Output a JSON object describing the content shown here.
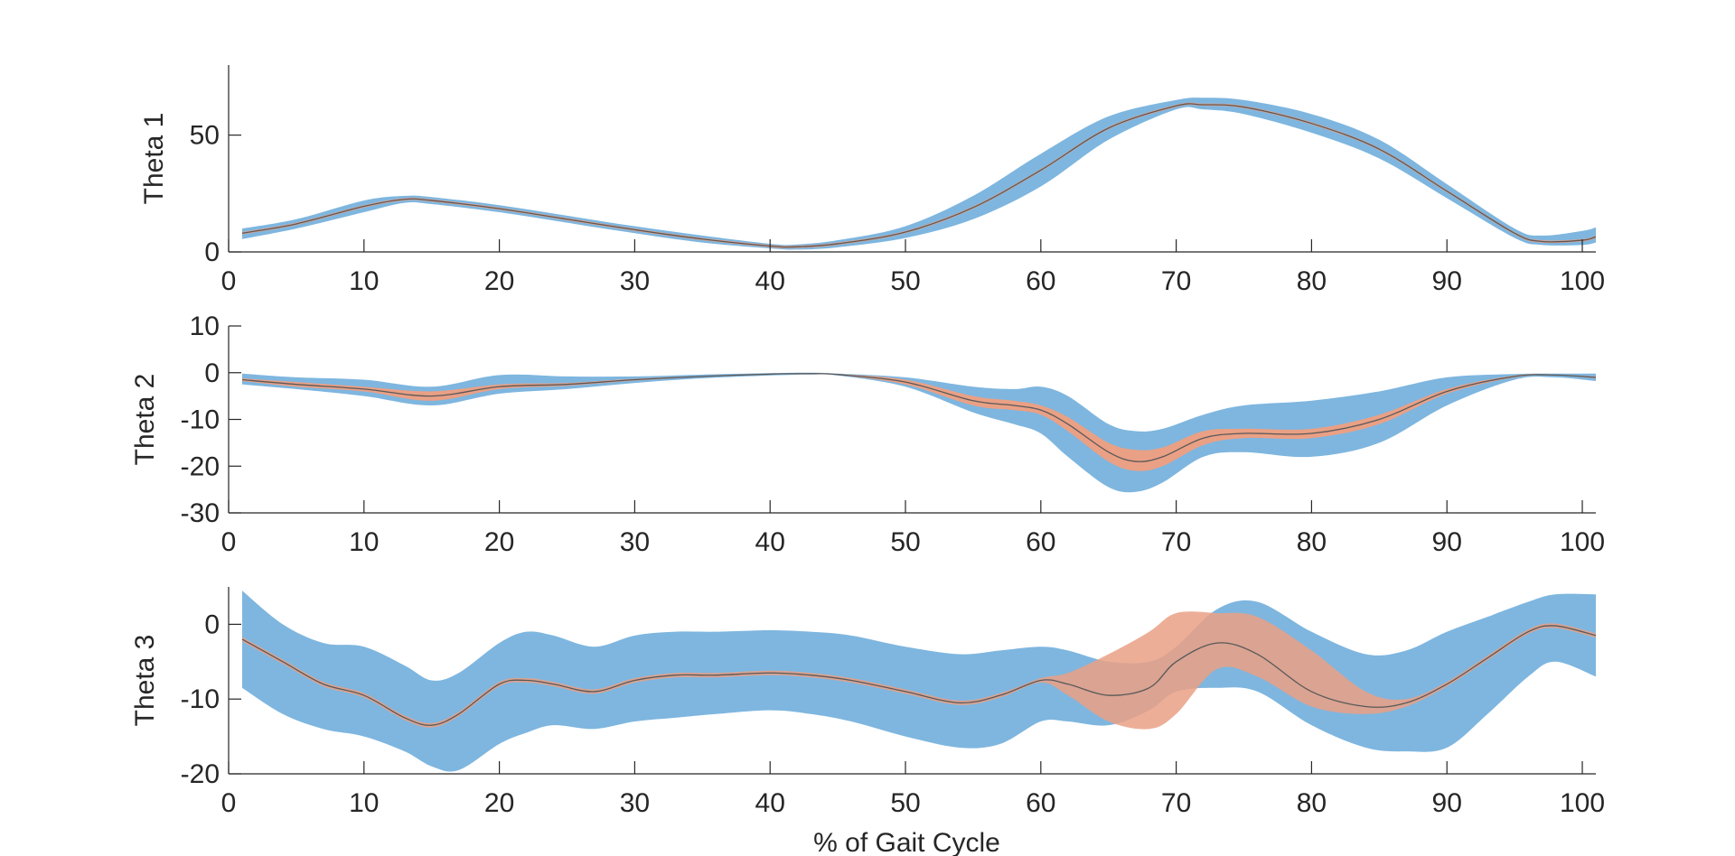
{
  "chart_data": [
    {
      "type": "line",
      "xlabel": "",
      "ylabel": "Theta 1",
      "xlim": [
        0,
        101
      ],
      "ylim": [
        0,
        80
      ],
      "xticks": [
        0,
        10,
        20,
        30,
        40,
        50,
        60,
        70,
        80,
        90,
        100
      ],
      "yticks": [
        0,
        50
      ],
      "grid": false,
      "colors": {
        "band_outer": "#7eb6df",
        "band_inner": "#eaa085",
        "mean_line": "#595959"
      },
      "series": [
        {
          "x": [
            1,
            5,
            10,
            13,
            15,
            20,
            25,
            30,
            35,
            40,
            42,
            45,
            50,
            55,
            60,
            65,
            70,
            72,
            75,
            80,
            85,
            90,
            95,
            97,
            100,
            101
          ],
          "mean": [
            8,
            12,
            19.5,
            22.5,
            22,
            18.5,
            14,
            9.5,
            5.5,
            2.5,
            2.2,
            3.5,
            8.5,
            19,
            35,
            53,
            62.5,
            63,
            62,
            55,
            44,
            26,
            8,
            4.5,
            5,
            6.5
          ],
          "outer_upper": [
            10,
            14,
            22,
            24,
            23.5,
            20,
            15.5,
            11,
            7,
            3.5,
            3.2,
            5,
            11,
            24,
            42,
            58,
            65,
            66,
            65,
            59,
            48,
            29,
            10,
            7,
            9,
            10.5
          ],
          "outer_lower": [
            5.5,
            10,
            17,
            21,
            20.5,
            17,
            12.5,
            8,
            4,
            1.5,
            1,
            2,
            6,
            14,
            28,
            48,
            61,
            61,
            59,
            51,
            40,
            23,
            6,
            3,
            3,
            4
          ],
          "inner_upper": [
            8.5,
            12.5,
            20,
            23,
            22.5,
            19,
            14.5,
            10,
            6,
            3,
            2.7,
            4,
            9,
            19.5,
            35.5,
            53.5,
            63,
            63.5,
            62.5,
            55.5,
            44.5,
            26.5,
            8.5,
            5,
            5.5,
            7
          ],
          "inner_lower": [
            7.5,
            11.5,
            19,
            22,
            21.5,
            18,
            13.5,
            9,
            5,
            2,
            1.7,
            3,
            8,
            18.5,
            34.5,
            52.5,
            62,
            62.5,
            61.5,
            54.5,
            43.5,
            25.5,
            7.5,
            4,
            4.5,
            6
          ]
        }
      ]
    },
    {
      "type": "line",
      "xlabel": "",
      "ylabel": "Theta 2",
      "xlim": [
        0,
        101
      ],
      "ylim": [
        -30,
        10
      ],
      "xticks": [
        0,
        10,
        20,
        30,
        40,
        50,
        60,
        70,
        80,
        90,
        100
      ],
      "yticks": [
        -30,
        -20,
        -10,
        0,
        10
      ],
      "grid": false,
      "colors": {
        "band_outer": "#7eb6df",
        "band_inner": "#eaa085",
        "mean_line": "#595959"
      },
      "series": [
        {
          "x": [
            1,
            5,
            10,
            15,
            20,
            25,
            30,
            35,
            40,
            43,
            45,
            50,
            55,
            58,
            60,
            62,
            65,
            67,
            69,
            72,
            75,
            80,
            85,
            90,
            95,
            98,
            101
          ],
          "mean": [
            -1.5,
            -2.5,
            -3.5,
            -5,
            -3,
            -2.5,
            -1.5,
            -0.8,
            -0.3,
            -0.2,
            -0.4,
            -2,
            -6,
            -7,
            -8,
            -11,
            -17,
            -19,
            -18,
            -14,
            -13,
            -13,
            -10,
            -4,
            -0.8,
            -0.5,
            -1
          ],
          "outer_upper": [
            -0.2,
            -1,
            -1.5,
            -3,
            -0.5,
            -0.8,
            -0.8,
            -0.4,
            -0.1,
            0,
            -0.2,
            -1,
            -3,
            -3.5,
            -3,
            -5,
            -11,
            -12.5,
            -12,
            -9,
            -7,
            -6,
            -4,
            -1,
            -0.3,
            -0.2,
            -0.2
          ],
          "outer_lower": [
            -2.5,
            -3.5,
            -5,
            -7,
            -4.5,
            -3.5,
            -2.2,
            -1.2,
            -0.6,
            -0.4,
            -0.6,
            -3,
            -8.5,
            -11,
            -13,
            -18,
            -24.5,
            -25.5,
            -23.5,
            -18,
            -17,
            -18,
            -15,
            -7,
            -1.5,
            -1,
            -1.8
          ],
          "inner_upper": [
            -1.2,
            -2,
            -3,
            -4,
            -2.5,
            -2.2,
            -1.3,
            -0.7,
            -0.2,
            -0.1,
            -0.3,
            -1.5,
            -5,
            -6,
            -7,
            -9.5,
            -15,
            -16.5,
            -16,
            -12.5,
            -12,
            -12,
            -9,
            -3.5,
            -0.6,
            -0.4,
            -0.8
          ],
          "inner_lower": [
            -1.8,
            -3,
            -4,
            -6,
            -3.5,
            -2.8,
            -1.7,
            -0.9,
            -0.4,
            -0.3,
            -0.5,
            -2.5,
            -7,
            -8,
            -9,
            -12.5,
            -19,
            -21,
            -20,
            -15.5,
            -14,
            -14,
            -11,
            -4.5,
            -1,
            -0.6,
            -1.2
          ]
        }
      ]
    },
    {
      "type": "line",
      "xlabel": "% of Gait Cycle",
      "ylabel": "Theta 3",
      "xlim": [
        0,
        101
      ],
      "ylim": [
        -20,
        5
      ],
      "xticks": [
        0,
        10,
        20,
        30,
        40,
        50,
        60,
        70,
        80,
        90,
        100
      ],
      "yticks": [
        -20,
        -10,
        0
      ],
      "grid": false,
      "colors": {
        "band_outer": "#7eb6df",
        "band_inner": "#eaa085",
        "mean_line": "#595959"
      },
      "series": [
        {
          "x": [
            1,
            4,
            7,
            10,
            13,
            15,
            17,
            20,
            22,
            24,
            27,
            30,
            33,
            36,
            40,
            43,
            46,
            50,
            54,
            57,
            60,
            62,
            65,
            68,
            70,
            73,
            76,
            80,
            84,
            87,
            90,
            93,
            96,
            98,
            101
          ],
          "mean": [
            -2,
            -5,
            -8,
            -9.5,
            -12.5,
            -13.5,
            -12,
            -8,
            -7.5,
            -8,
            -9,
            -7.5,
            -6.8,
            -6.8,
            -6.5,
            -6.8,
            -7.5,
            -9,
            -10.5,
            -9.5,
            -7.5,
            -8,
            -9.5,
            -8.5,
            -5,
            -2.5,
            -4,
            -9,
            -11,
            -10.5,
            -8,
            -4.5,
            -1,
            -0.2,
            -1.5
          ],
          "outer_upper": [
            4.5,
            0,
            -2.5,
            -3,
            -5.5,
            -7.5,
            -6.5,
            -2.5,
            -1,
            -1.5,
            -3,
            -1.5,
            -1,
            -1,
            -0.8,
            -1,
            -1.5,
            -3,
            -4,
            -3.5,
            -3,
            -3.5,
            -5,
            -5,
            -3,
            2,
            3,
            -1,
            -4,
            -3.5,
            -1,
            1,
            3,
            4,
            4
          ],
          "outer_lower": [
            -8.5,
            -12,
            -14,
            -15,
            -17,
            -19,
            -19.5,
            -16,
            -14.5,
            -13.5,
            -14,
            -13,
            -12.5,
            -12,
            -11.5,
            -12,
            -13,
            -15,
            -16.5,
            -16,
            -13,
            -13,
            -13.5,
            -11.5,
            -9,
            -8.5,
            -9,
            -13.5,
            -16.5,
            -17,
            -16.5,
            -12,
            -7,
            -5,
            -7
          ],
          "inner_upper": [
            -1.7,
            -4.7,
            -7.7,
            -9.2,
            -12.2,
            -13.2,
            -11.7,
            -7.7,
            -7.2,
            -7.7,
            -8.7,
            -7.2,
            -6.5,
            -6.5,
            -6.2,
            -6.5,
            -7.2,
            -8.7,
            -10.2,
            -9.2,
            -7.2,
            -6.5,
            -4,
            -1,
            1.5,
            1.5,
            1,
            -3.5,
            -9,
            -10,
            -7.7,
            -4.2,
            -0.7,
            0.1,
            -1.2
          ],
          "inner_lower": [
            -2.3,
            -5.3,
            -8.3,
            -9.8,
            -12.8,
            -13.8,
            -12.3,
            -8.3,
            -7.8,
            -8.3,
            -9.3,
            -7.8,
            -7.1,
            -7.1,
            -6.8,
            -7.1,
            -7.8,
            -9.3,
            -10.8,
            -9.8,
            -7.8,
            -9.5,
            -13,
            -14,
            -12,
            -6,
            -7,
            -11,
            -12,
            -11,
            -8.3,
            -4.8,
            -1.3,
            -0.5,
            -1.8
          ]
        }
      ]
    }
  ]
}
